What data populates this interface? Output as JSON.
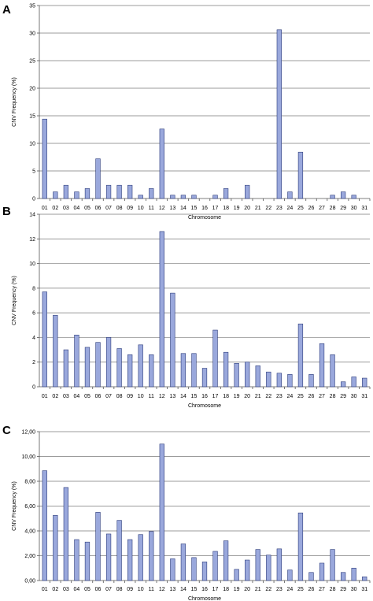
{
  "chart_data": [
    {
      "panel": "A",
      "type": "bar",
      "categories": [
        "01",
        "02",
        "03",
        "04",
        "05",
        "06",
        "07",
        "08",
        "09",
        "10",
        "11",
        "12",
        "13",
        "14",
        "15",
        "16",
        "17",
        "18",
        "19",
        "20",
        "21",
        "22",
        "23",
        "24",
        "25",
        "26",
        "27",
        "28",
        "29",
        "30",
        "31"
      ],
      "values": [
        14.4,
        1.2,
        2.4,
        1.2,
        1.8,
        7.2,
        2.4,
        2.4,
        2.4,
        0.6,
        1.8,
        12.6,
        0.6,
        0.6,
        0.6,
        0,
        0.6,
        1.8,
        0,
        2.4,
        0,
        0,
        30.6,
        1.2,
        8.4,
        0,
        0,
        0.6,
        1.2,
        0.6,
        0
      ],
      "ylim": [
        0,
        35
      ],
      "yticks": [
        "0",
        "5",
        "10",
        "15",
        "20",
        "25",
        "30",
        "35"
      ],
      "ytick_values": [
        0,
        5,
        10,
        15,
        20,
        25,
        30,
        35
      ],
      "xlabel": "Chromosome",
      "ylabel": "CNV Frequency (%)",
      "grid": true
    },
    {
      "panel": "B",
      "type": "bar",
      "categories": [
        "01",
        "02",
        "03",
        "04",
        "05",
        "06",
        "07",
        "08",
        "09",
        "10",
        "11",
        "12",
        "13",
        "14",
        "15",
        "16",
        "17",
        "18",
        "19",
        "20",
        "21",
        "22",
        "23",
        "24",
        "25",
        "26",
        "27",
        "28",
        "29",
        "30",
        "31"
      ],
      "values": [
        7.7,
        5.8,
        3.0,
        4.2,
        3.2,
        3.6,
        4.0,
        3.1,
        2.6,
        3.4,
        2.6,
        12.6,
        7.6,
        2.7,
        2.7,
        1.5,
        4.6,
        2.8,
        1.9,
        2.0,
        1.7,
        1.2,
        1.1,
        1.0,
        5.1,
        1.0,
        3.5,
        2.6,
        0.4,
        0.8,
        0.7
      ],
      "ylim": [
        0,
        14
      ],
      "yticks": [
        "0",
        "2",
        "4",
        "6",
        "8",
        "10",
        "12",
        "14"
      ],
      "ytick_values": [
        0,
        2,
        4,
        6,
        8,
        10,
        12,
        14
      ],
      "xlabel": "Chromosome",
      "ylabel": "CNV Frequency (%)",
      "grid": true
    },
    {
      "panel": "C",
      "type": "bar",
      "categories": [
        "01",
        "02",
        "03",
        "04",
        "05",
        "06",
        "07",
        "08",
        "09",
        "10",
        "11",
        "12",
        "13",
        "14",
        "15",
        "16",
        "17",
        "18",
        "19",
        "20",
        "21",
        "22",
        "23",
        "24",
        "25",
        "26",
        "27",
        "28",
        "29",
        "30",
        "31"
      ],
      "values": [
        8.85,
        5.25,
        7.5,
        3.3,
        3.1,
        5.5,
        3.75,
        4.85,
        3.3,
        3.7,
        3.95,
        11.0,
        1.75,
        2.95,
        1.85,
        1.5,
        2.35,
        3.2,
        0.9,
        1.65,
        2.5,
        2.05,
        2.55,
        0.85,
        5.45,
        0.65,
        1.4,
        2.5,
        0.65,
        1.0,
        0.3
      ],
      "ylim": [
        0,
        12
      ],
      "yticks": [
        "0,00",
        "2,00",
        "4,00",
        "6,00",
        "8,00",
        "10,00",
        "12,00"
      ],
      "ytick_values": [
        0,
        2,
        4,
        6,
        8,
        10,
        12
      ],
      "xlabel": "Chromosome",
      "ylabel": "CNV Frequency (%)",
      "grid": true
    }
  ],
  "colors": {
    "bar_fill": "#9aa8dc",
    "bar_stroke": "#2a3a7a",
    "grid": "#7a7a7a"
  }
}
